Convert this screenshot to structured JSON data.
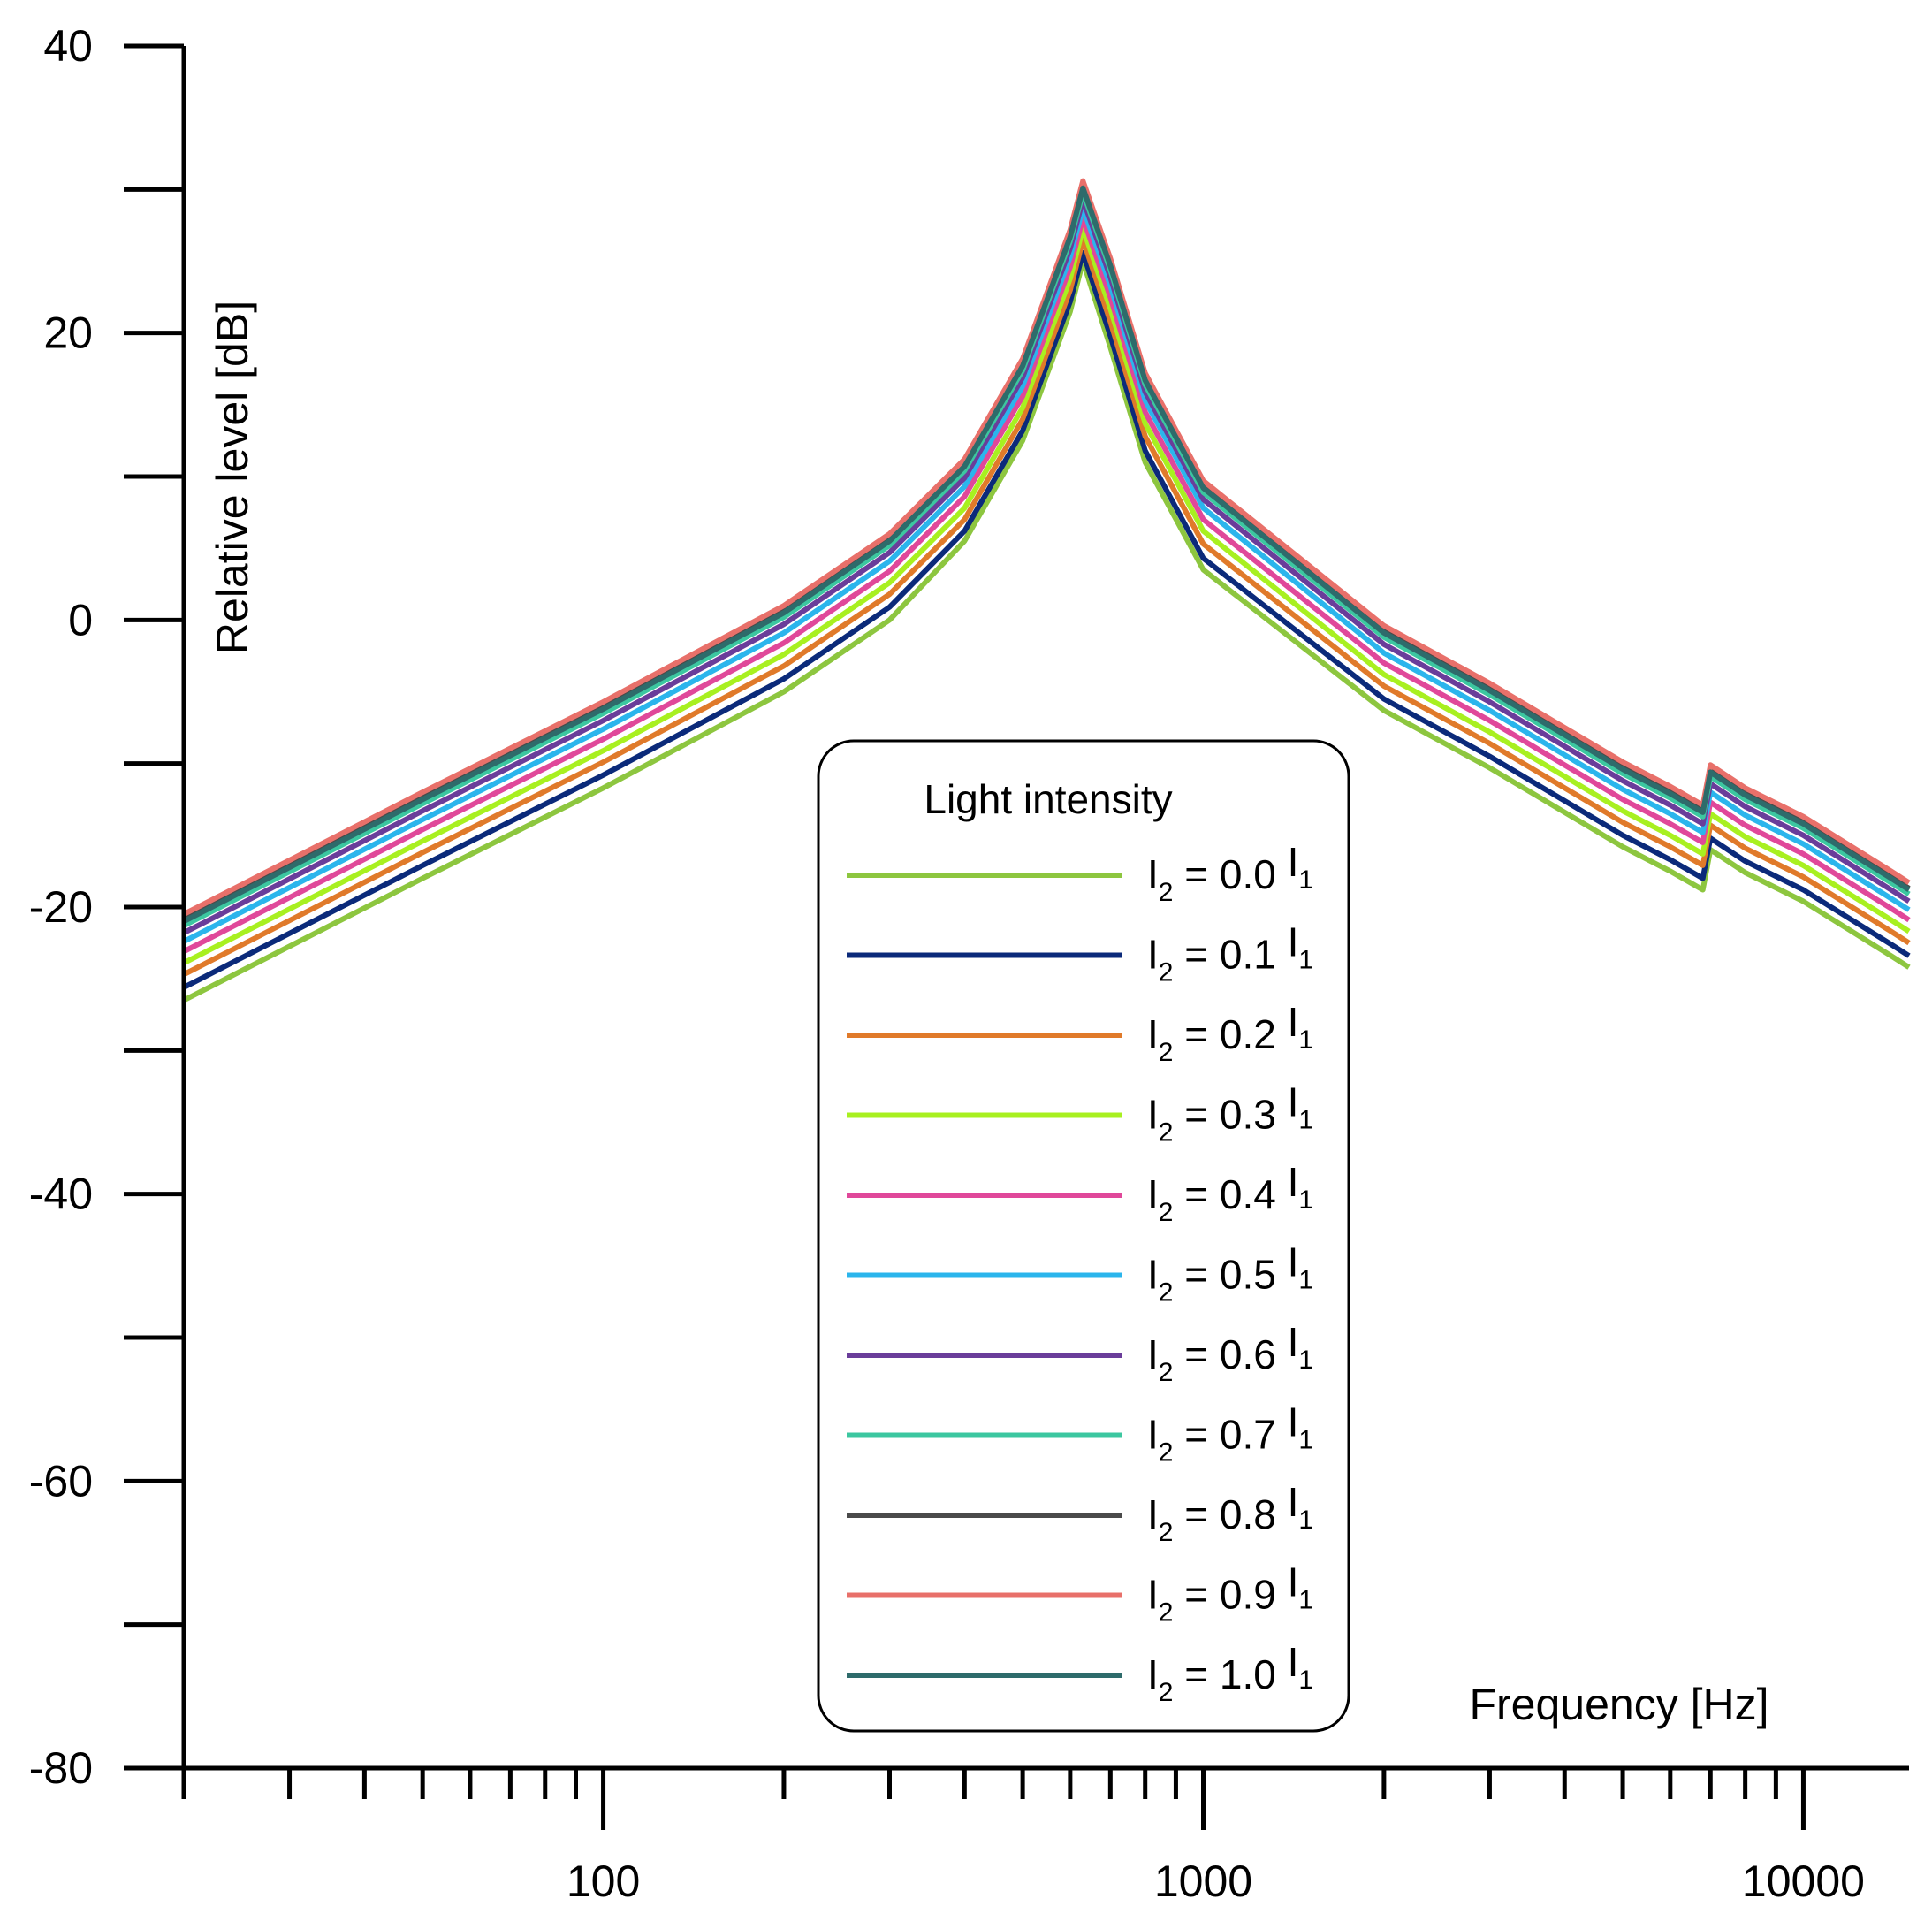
{
  "chart_data": {
    "type": "line",
    "xscale": "log",
    "xlim": [
      20,
      15000
    ],
    "ylim": [
      -80,
      40
    ],
    "xlabel": "Frequency [Hz]",
    "ylabel": "Relative level [dB]",
    "x_tick_labels": [
      {
        "value": 100,
        "label": "100"
      },
      {
        "value": 1000,
        "label": "1000"
      },
      {
        "value": 10000,
        "label": "10000"
      }
    ],
    "y_tick_labels": [
      {
        "value": 40,
        "label": "40"
      },
      {
        "value": 20,
        "label": "20"
      },
      {
        "value": 0,
        "label": "0"
      },
      {
        "value": -20,
        "label": "-20"
      },
      {
        "value": -40,
        "label": "-40"
      },
      {
        "value": -60,
        "label": "-60"
      },
      {
        "value": -80,
        "label": "-80"
      }
    ],
    "legend": {
      "title": "Light intensity",
      "placement": "center-bottom"
    },
    "x": [
      20,
      50,
      100,
      200,
      300,
      400,
      500,
      600,
      630,
      700,
      800,
      1000,
      2000,
      3000,
      5000,
      6000,
      6800,
      7000,
      8000,
      10000,
      14000,
      15000
    ],
    "series": [
      {
        "name": "I2 = 0.0 I1",
        "color": "#8dc63f",
        "values": [
          -26.5,
          -18.0,
          -11.7,
          -5.0,
          0.0,
          5.5,
          12.5,
          21.5,
          25.0,
          19.0,
          11.0,
          3.5,
          -6.3,
          -10.3,
          -15.8,
          -17.5,
          -18.8,
          -16.0,
          -17.6,
          -19.6,
          -23.4,
          -24.2
        ]
      },
      {
        "name": "I2 = 0.1 I1",
        "color": "#0b2a7a",
        "values": [
          -25.6,
          -17.1,
          -10.8,
          -4.1,
          0.9,
          6.2,
          13.2,
          22.2,
          25.6,
          19.8,
          11.8,
          4.3,
          -5.5,
          -9.5,
          -15.0,
          -16.7,
          -18.0,
          -15.2,
          -16.8,
          -18.8,
          -22.6,
          -23.4
        ]
      },
      {
        "name": "I2 = 0.2 I1",
        "color": "#e07a2a",
        "values": [
          -24.7,
          -16.2,
          -9.9,
          -3.2,
          1.8,
          7.0,
          14.0,
          23.0,
          26.5,
          20.8,
          12.8,
          5.3,
          -4.6,
          -8.6,
          -14.1,
          -15.8,
          -17.1,
          -14.3,
          -15.9,
          -17.9,
          -21.7,
          -22.5
        ]
      },
      {
        "name": "I2 = 0.3 I1",
        "color": "#a8f020",
        "values": [
          -23.9,
          -15.4,
          -9.1,
          -2.4,
          2.6,
          7.8,
          14.8,
          23.8,
          27.3,
          21.7,
          13.7,
          6.2,
          -3.8,
          -7.8,
          -13.3,
          -15.0,
          -16.3,
          -13.5,
          -15.1,
          -17.1,
          -20.9,
          -21.7
        ]
      },
      {
        "name": "I2 = 0.4 I1",
        "color": "#e0489a",
        "values": [
          -23.1,
          -14.6,
          -8.3,
          -1.6,
          3.4,
          8.6,
          15.6,
          24.6,
          28.0,
          22.5,
          14.5,
          7.0,
          -3.0,
          -7.0,
          -12.5,
          -14.2,
          -15.5,
          -12.7,
          -14.3,
          -16.3,
          -20.1,
          -20.9
        ]
      },
      {
        "name": "I2 = 0.5 I1",
        "color": "#2bb5ec",
        "values": [
          -22.4,
          -13.9,
          -7.6,
          -0.9,
          4.1,
          9.3,
          16.3,
          25.3,
          28.7,
          23.3,
          15.3,
          7.8,
          -2.3,
          -6.3,
          -11.8,
          -13.5,
          -14.8,
          -12.0,
          -13.6,
          -15.6,
          -19.4,
          -20.2
        ]
      },
      {
        "name": "I2 = 0.6 I1",
        "color": "#6a3d9a",
        "values": [
          -21.8,
          -13.3,
          -7.0,
          -0.3,
          4.7,
          9.9,
          16.9,
          25.9,
          29.3,
          23.9,
          15.9,
          8.4,
          -1.7,
          -5.7,
          -11.2,
          -12.9,
          -14.2,
          -11.4,
          -13.0,
          -15.0,
          -18.8,
          -19.6
        ]
      },
      {
        "name": "I2 = 0.7 I1",
        "color": "#3cc7a0",
        "values": [
          -21.3,
          -12.8,
          -6.5,
          0.2,
          5.2,
          10.4,
          17.4,
          26.4,
          29.8,
          24.4,
          16.4,
          8.9,
          -1.2,
          -5.2,
          -10.7,
          -12.4,
          -13.7,
          -10.9,
          -12.5,
          -14.5,
          -18.3,
          -19.1
        ]
      },
      {
        "name": "I2 = 0.8 I1",
        "color": "#4a4a4a",
        "values": [
          -20.9,
          -12.4,
          -6.1,
          0.6,
          5.6,
          10.8,
          17.8,
          26.8,
          30.2,
          24.8,
          16.8,
          9.3,
          -0.8,
          -4.8,
          -10.3,
          -12.0,
          -13.3,
          -10.5,
          -12.1,
          -14.1,
          -17.9,
          -18.7
        ]
      },
      {
        "name": "I2 = 0.9 I1",
        "color": "#e8706a",
        "values": [
          -20.5,
          -12.0,
          -5.7,
          1.0,
          6.0,
          11.2,
          18.2,
          27.2,
          30.6,
          25.2,
          17.2,
          9.7,
          -0.4,
          -4.4,
          -9.9,
          -11.6,
          -12.9,
          -10.1,
          -11.7,
          -13.7,
          -17.5,
          -18.3
        ]
      },
      {
        "name": "I2 = 1.0 I1",
        "color": "#2e6b6b",
        "values": [
          -21.0,
          -12.5,
          -6.2,
          0.5,
          5.5,
          10.7,
          17.7,
          26.7,
          30.1,
          24.7,
          16.7,
          9.2,
          -0.9,
          -4.9,
          -10.4,
          -12.1,
          -13.4,
          -10.6,
          -12.2,
          -14.2,
          -18.0,
          -18.8
        ]
      }
    ]
  }
}
